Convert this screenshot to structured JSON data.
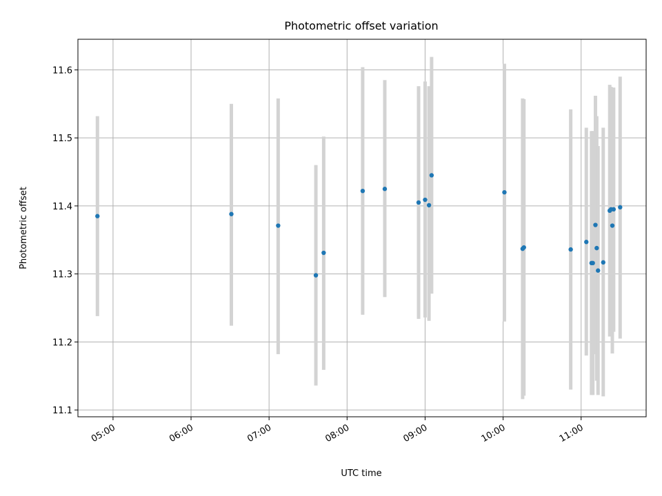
{
  "chart_data": {
    "type": "scatter",
    "title": "Photometric offset variation",
    "xlabel": "UTC time",
    "ylabel": "Photometric offset",
    "x_axis": "time",
    "xlim": [
      "04:33",
      "11:50"
    ],
    "ylim": [
      11.09,
      11.645
    ],
    "x_ticks": [
      "05:00",
      "06:00",
      "07:00",
      "08:00",
      "09:00",
      "10:00",
      "11:00"
    ],
    "y_ticks": [
      11.1,
      11.2,
      11.3,
      11.4,
      11.5,
      11.6
    ],
    "y_tick_labels": [
      "11.1",
      "11.2",
      "11.3",
      "11.4",
      "11.5",
      "11.6"
    ],
    "grid": true,
    "legend": "none",
    "colors": {
      "points": "#1f77b4",
      "error_bars": "#d3d3d3",
      "grid": "#b0b0b0"
    },
    "points": [
      {
        "x": "04:48",
        "y": 11.385,
        "ylow": 11.238,
        "yhigh": 11.532
      },
      {
        "x": "06:31",
        "y": 11.388,
        "ylow": 11.224,
        "yhigh": 11.55
      },
      {
        "x": "07:07",
        "y": 11.371,
        "ylow": 11.182,
        "yhigh": 11.558
      },
      {
        "x": "07:36",
        "y": 11.298,
        "ylow": 11.136,
        "yhigh": 11.46
      },
      {
        "x": "07:42",
        "y": 11.331,
        "ylow": 11.159,
        "yhigh": 11.502
      },
      {
        "x": "08:12",
        "y": 11.422,
        "ylow": 11.24,
        "yhigh": 11.604
      },
      {
        "x": "08:29",
        "y": 11.425,
        "ylow": 11.266,
        "yhigh": 11.585
      },
      {
        "x": "08:55",
        "y": 11.405,
        "ylow": 11.234,
        "yhigh": 11.576
      },
      {
        "x": "09:00",
        "y": 11.409,
        "ylow": 11.236,
        "yhigh": 11.583
      },
      {
        "x": "09:03",
        "y": 11.401,
        "ylow": 11.231,
        "yhigh": 11.576
      },
      {
        "x": "09:05",
        "y": 11.445,
        "ylow": 11.271,
        "yhigh": 11.619
      },
      {
        "x": "10:01",
        "y": 11.42,
        "ylow": 11.23,
        "yhigh": 11.609
      },
      {
        "x": "10:15",
        "y": 11.337,
        "ylow": 11.116,
        "yhigh": 11.558
      },
      {
        "x": "10:16",
        "y": 11.339,
        "ylow": 11.121,
        "yhigh": 11.557
      },
      {
        "x": "10:52",
        "y": 11.336,
        "ylow": 11.13,
        "yhigh": 11.542
      },
      {
        "x": "11:04",
        "y": 11.347,
        "ylow": 11.18,
        "yhigh": 11.515
      },
      {
        "x": "11:08",
        "y": 11.316,
        "ylow": 11.122,
        "yhigh": 11.51
      },
      {
        "x": "11:09",
        "y": 11.316,
        "ylow": 11.122,
        "yhigh": 11.51
      },
      {
        "x": "11:11",
        "y": 11.372,
        "ylow": 11.182,
        "yhigh": 11.562
      },
      {
        "x": "11:12",
        "y": 11.338,
        "ylow": 11.143,
        "yhigh": 11.532
      },
      {
        "x": "11:13",
        "y": 11.305,
        "ylow": 11.122,
        "yhigh": 11.488
      },
      {
        "x": "11:17",
        "y": 11.317,
        "ylow": 11.12,
        "yhigh": 11.515
      },
      {
        "x": "11:22",
        "y": 11.393,
        "ylow": 11.208,
        "yhigh": 11.578
      },
      {
        "x": "11:23",
        "y": 11.395,
        "ylow": 11.215,
        "yhigh": 11.575
      },
      {
        "x": "11:24",
        "y": 11.371,
        "ylow": 11.183,
        "yhigh": 11.574
      },
      {
        "x": "11:25",
        "y": 11.395,
        "ylow": 11.215,
        "yhigh": 11.574
      },
      {
        "x": "11:30",
        "y": 11.398,
        "ylow": 11.205,
        "yhigh": 11.59
      }
    ]
  }
}
